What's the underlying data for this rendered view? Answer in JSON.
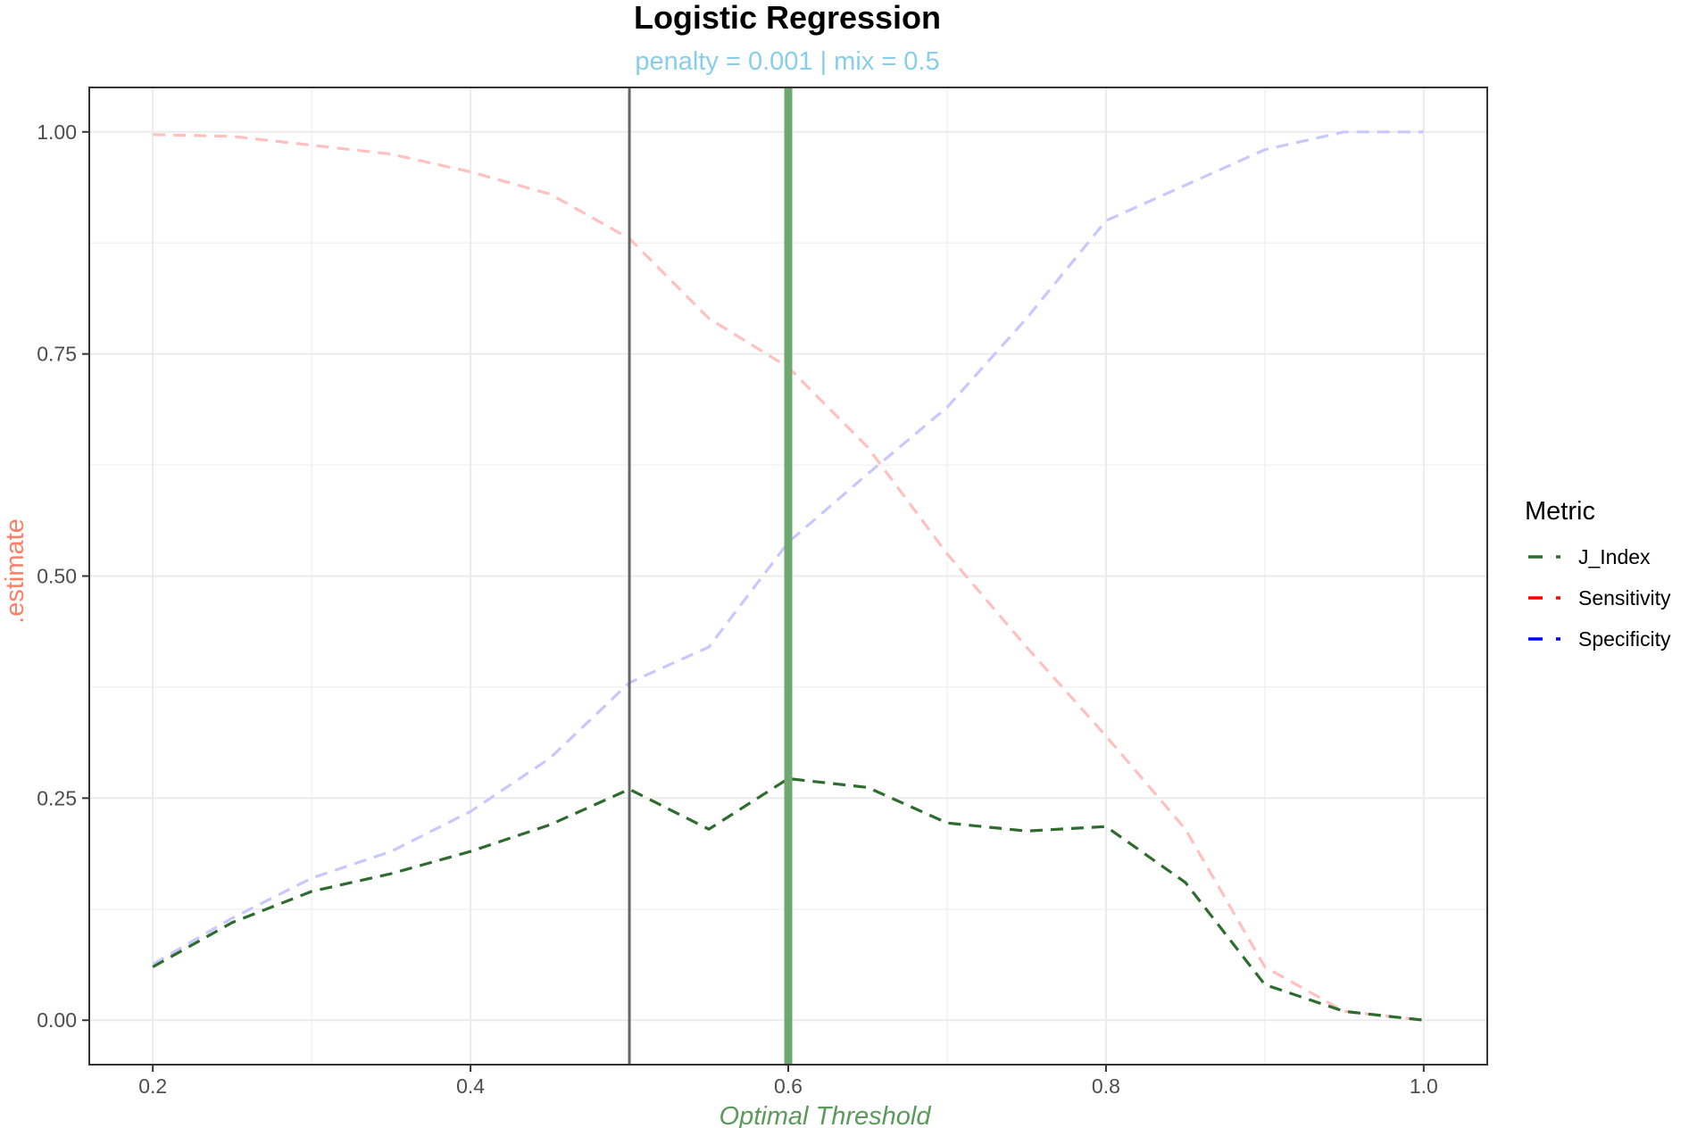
{
  "chart_data": {
    "type": "line",
    "title": "Logistic Regression",
    "subtitle": "penalty = 0.001 | mix = 0.5",
    "xlabel": "Optimal Threshold",
    "ylabel": ".estimate",
    "xlim": [
      0.16,
      1.04
    ],
    "ylim": [
      -0.05,
      1.05
    ],
    "x_ticks": [
      0.2,
      0.4,
      0.6,
      0.8,
      1.0
    ],
    "x_tick_labels": [
      "0.2",
      "0.4",
      "0.6",
      "0.8",
      "1.0"
    ],
    "y_ticks": [
      0.0,
      0.25,
      0.5,
      0.75,
      1.0
    ],
    "y_tick_labels": [
      "0.00",
      "0.25",
      "0.50",
      "0.75",
      "1.00"
    ],
    "grid": true,
    "legend": {
      "title": "Metric",
      "position": "right"
    },
    "x": [
      0.2,
      0.25,
      0.3,
      0.35,
      0.4,
      0.45,
      0.5,
      0.55,
      0.6,
      0.65,
      0.7,
      0.75,
      0.8,
      0.85,
      0.9,
      0.95,
      1.0
    ],
    "series": [
      {
        "name": "J_Index",
        "color": "#2E6B2E",
        "legend_color": "#2E6B2E",
        "opacity": 1.0,
        "values": [
          0.06,
          0.11,
          0.145,
          0.165,
          0.19,
          0.22,
          0.26,
          0.215,
          0.272,
          0.262,
          0.222,
          0.213,
          0.218,
          0.155,
          0.04,
          0.01,
          0.0
        ]
      },
      {
        "name": "Sensitivity",
        "color": "#FFC0C0",
        "legend_color": "#FF0000",
        "opacity": 1.0,
        "values": [
          0.997,
          0.995,
          0.985,
          0.975,
          0.955,
          0.93,
          0.88,
          0.79,
          0.735,
          0.645,
          0.525,
          0.42,
          0.32,
          0.215,
          0.06,
          0.01,
          0.0
        ]
      },
      {
        "name": "Specificity",
        "color": "#C8C8FF",
        "legend_color": "#0000FF",
        "opacity": 1.0,
        "values": [
          0.063,
          0.115,
          0.16,
          0.19,
          0.235,
          0.295,
          0.38,
          0.42,
          0.538,
          0.615,
          0.69,
          0.79,
          0.9,
          0.94,
          0.98,
          1.0,
          1.0
        ]
      }
    ],
    "vlines": [
      {
        "x": 0.5,
        "color": "#666666",
        "width": 3
      },
      {
        "x": 0.6,
        "color": "#6FA86F",
        "width": 9
      }
    ]
  }
}
